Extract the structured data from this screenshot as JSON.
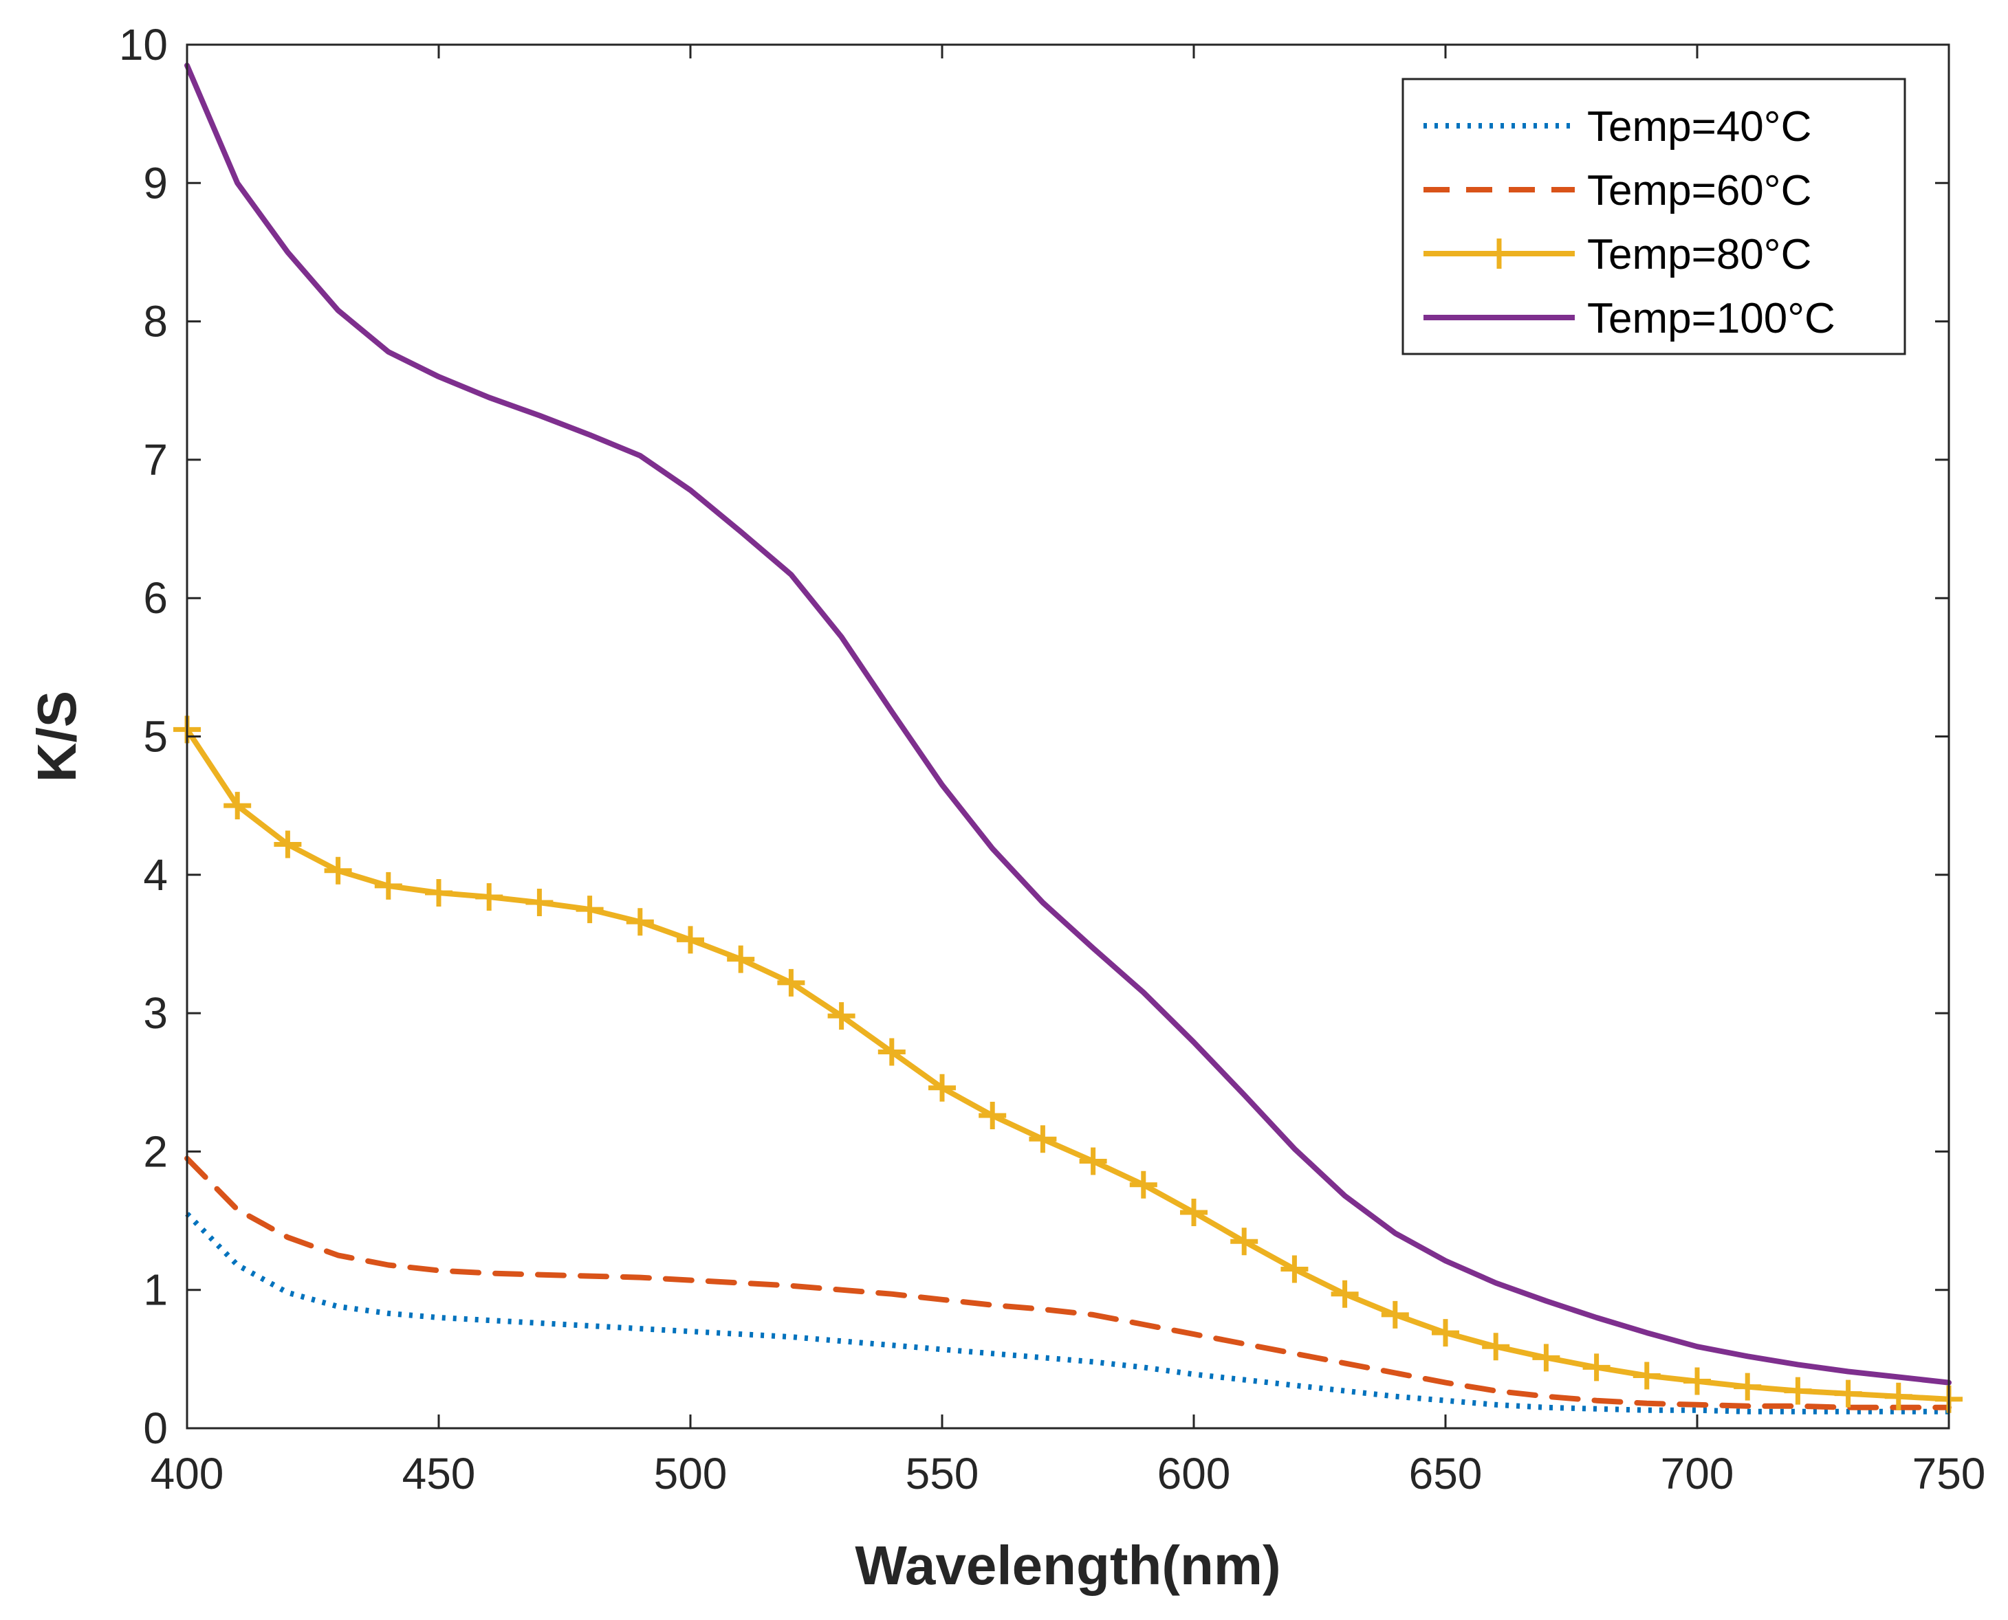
{
  "chart_data": {
    "type": "line",
    "title": "",
    "xlabel": "Wavelength(nm)",
    "ylabel": "K/S",
    "xlim": [
      400,
      750
    ],
    "ylim": [
      0,
      10
    ],
    "xticks": [
      400,
      450,
      500,
      550,
      600,
      650,
      700,
      750
    ],
    "yticks": [
      0,
      1,
      2,
      3,
      4,
      5,
      6,
      7,
      8,
      9,
      10
    ],
    "xtick_labels": [
      "400",
      "450",
      "500",
      "550",
      "600",
      "650",
      "700",
      "750"
    ],
    "ytick_labels": [
      "0",
      "1",
      "2",
      "3",
      "4",
      "5",
      "6",
      "7",
      "8",
      "9",
      "10"
    ],
    "grid": false,
    "legend_position": "top-right",
    "x": [
      400,
      410,
      420,
      430,
      440,
      450,
      460,
      470,
      480,
      490,
      500,
      510,
      520,
      530,
      540,
      550,
      560,
      570,
      580,
      590,
      600,
      610,
      620,
      630,
      640,
      650,
      660,
      670,
      680,
      690,
      700,
      710,
      720,
      730,
      740,
      750
    ],
    "series": [
      {
        "name": "Temp=40°C",
        "color": "#0072BD",
        "style": "dotted",
        "marker": "none",
        "values": [
          1.55,
          1.18,
          0.98,
          0.88,
          0.83,
          0.8,
          0.78,
          0.76,
          0.74,
          0.72,
          0.7,
          0.68,
          0.66,
          0.63,
          0.6,
          0.57,
          0.54,
          0.51,
          0.48,
          0.44,
          0.39,
          0.35,
          0.31,
          0.27,
          0.23,
          0.2,
          0.17,
          0.15,
          0.14,
          0.13,
          0.13,
          0.12,
          0.12,
          0.12,
          0.12,
          0.12
        ]
      },
      {
        "name": "Temp=60°C",
        "color": "#D95319",
        "style": "dashed",
        "marker": "none",
        "values": [
          1.95,
          1.58,
          1.38,
          1.25,
          1.18,
          1.14,
          1.12,
          1.11,
          1.1,
          1.09,
          1.07,
          1.05,
          1.03,
          1.0,
          0.97,
          0.93,
          0.89,
          0.86,
          0.82,
          0.75,
          0.68,
          0.61,
          0.54,
          0.47,
          0.4,
          0.33,
          0.27,
          0.23,
          0.2,
          0.18,
          0.17,
          0.16,
          0.16,
          0.15,
          0.15,
          0.15
        ]
      },
      {
        "name": "Temp=80°C",
        "color": "#EDB120",
        "style": "solid",
        "marker": "plus",
        "values": [
          5.05,
          4.5,
          4.22,
          4.03,
          3.92,
          3.87,
          3.84,
          3.8,
          3.75,
          3.66,
          3.53,
          3.39,
          3.22,
          2.98,
          2.72,
          2.46,
          2.26,
          2.09,
          1.93,
          1.76,
          1.56,
          1.35,
          1.15,
          0.97,
          0.82,
          0.69,
          0.59,
          0.51,
          0.44,
          0.38,
          0.34,
          0.3,
          0.27,
          0.25,
          0.23,
          0.21
        ]
      },
      {
        "name": "Temp=100°C",
        "color": "#7E2F8E",
        "style": "solid",
        "marker": "none",
        "values": [
          9.85,
          9.0,
          8.5,
          8.08,
          7.78,
          7.6,
          7.45,
          7.32,
          7.18,
          7.03,
          6.78,
          6.48,
          6.17,
          5.72,
          5.18,
          4.65,
          4.19,
          3.8,
          3.47,
          3.15,
          2.79,
          2.41,
          2.02,
          1.68,
          1.41,
          1.21,
          1.05,
          0.92,
          0.8,
          0.69,
          0.59,
          0.52,
          0.46,
          0.41,
          0.37,
          0.33
        ]
      }
    ]
  }
}
